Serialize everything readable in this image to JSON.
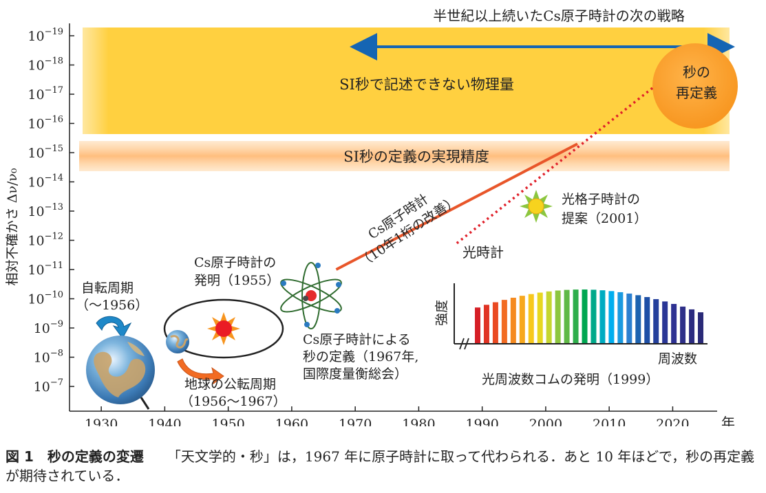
{
  "chart_data": {
    "type": "line",
    "title": "",
    "xlabel": "年",
    "ylabel": "相対不確かさ Δν/ν₀",
    "x_ticks": [
      1930,
      1940,
      1950,
      1960,
      1970,
      1980,
      1990,
      2000,
      2010,
      2020
    ],
    "xlim": [
      1925,
      2027
    ],
    "y_ticks": [
      {
        "exp": -7,
        "label_base": "10",
        "label_exp": "−7"
      },
      {
        "exp": -8,
        "label_base": "10",
        "label_exp": "−8"
      },
      {
        "exp": -9,
        "label_base": "10",
        "label_exp": "−9"
      },
      {
        "exp": -10,
        "label_base": "10",
        "label_exp": "−10"
      },
      {
        "exp": -11,
        "label_base": "10",
        "label_exp": "−11"
      },
      {
        "exp": -12,
        "label_base": "10",
        "label_exp": "−12"
      },
      {
        "exp": -13,
        "label_base": "10",
        "label_exp": "−13"
      },
      {
        "exp": -14,
        "label_base": "10",
        "label_exp": "−14"
      },
      {
        "exp": -15,
        "label_base": "10",
        "label_exp": "−15"
      },
      {
        "exp": -16,
        "label_base": "10",
        "label_exp": "−16"
      },
      {
        "exp": -17,
        "label_base": "10",
        "label_exp": "−17"
      },
      {
        "exp": -18,
        "label_base": "10",
        "label_exp": "−18"
      },
      {
        "exp": -19,
        "label_base": "10",
        "label_exp": "−19"
      }
    ],
    "scale": "log (downward = larger uncertainty)",
    "series": [
      {
        "name": "Cs原子時計（10年1桁の改善）",
        "style": "solid",
        "color": "#e8562a",
        "x": [
          1967,
          2005
        ],
        "y_exp": [
          -11,
          -15.3
        ]
      },
      {
        "name": "光時計",
        "style": "dotted",
        "color": "#e0202a",
        "x": [
          1986,
          2028
        ],
        "y_exp": [
          -11.9,
          -17.6
        ]
      }
    ],
    "bands": [
      {
        "label": "SI秒で記述できない物理量",
        "from_exp": -16,
        "to_exp": -19.3,
        "color": "#ffd040"
      },
      {
        "label": "SI秒の定義の実現精度",
        "from_exp": -15,
        "to_exp": -15.8,
        "color": "#ffc98a"
      }
    ],
    "top_arrow_label": "半世紀以上続いたCs原子時計の次の戦略",
    "circle_label": [
      "秒の",
      "再定義"
    ],
    "annotations": [
      {
        "id": "rotation",
        "lines": [
          "自転周期",
          "（〜1956）"
        ]
      },
      {
        "id": "orbit",
        "lines": [
          "地球の公転周期",
          "（1956〜1967）"
        ]
      },
      {
        "id": "cs_invent",
        "lines": [
          "Cs原子時計の",
          "発明（1955）"
        ]
      },
      {
        "id": "cs_def",
        "lines": [
          "Cs原子時計による",
          "秒の定義（1967年,",
          "国際度量衡総会）"
        ]
      },
      {
        "id": "cs_trend",
        "lines": [
          "Cs原子時計",
          "（10年1桁の改善）"
        ]
      },
      {
        "id": "lattice",
        "lines": [
          "光格子時計の",
          "提案（2001）"
        ]
      },
      {
        "id": "optical",
        "lines": [
          "光時計"
        ]
      },
      {
        "id": "comb",
        "lines": [
          "光周波数コムの発明（1999）"
        ]
      }
    ],
    "inset": {
      "ylabel": "強度",
      "xlabel": "周波数",
      "bars": 26
    }
  },
  "caption": {
    "lead": "図 1　秒の定義の変遷",
    "text": "「天文学的・秒」は，1967 年に原子時計に取って代わられる．あと 10 年ほどで，秒の再定義が期待されている．"
  }
}
